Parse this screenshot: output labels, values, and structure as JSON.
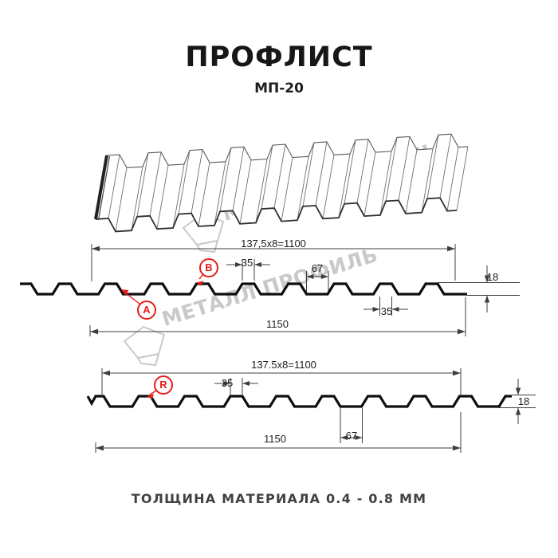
{
  "header": {
    "title": "ПРОФЛИСТ",
    "subtitle": "МП-20"
  },
  "footer": {
    "text": "ТОЛЩИНА МАТЕРИАЛА 0.4 - 0.8 ММ"
  },
  "watermark": {
    "text": "МЕТАЛЛ ПРОФИЛЬ"
  },
  "colors": {
    "accent_red": "#e71c18",
    "profile_line": "#0e0e0e",
    "dim_line": "#3f3f3f",
    "watermark": "#c9c9c9"
  },
  "view_top": {
    "dims": {
      "module": "137,5x8=1100",
      "rib_top": "35",
      "valley": "67",
      "height": "18",
      "rib_bottom": "35",
      "overall": "1150"
    },
    "labels": {
      "a": "A",
      "b": "B"
    }
  },
  "view_bottom": {
    "dims": {
      "module": "137.5x8=1100",
      "rib_top": "35",
      "valley": "67",
      "height": "18",
      "overall": "1150"
    },
    "labels": {
      "r": "R"
    }
  }
}
